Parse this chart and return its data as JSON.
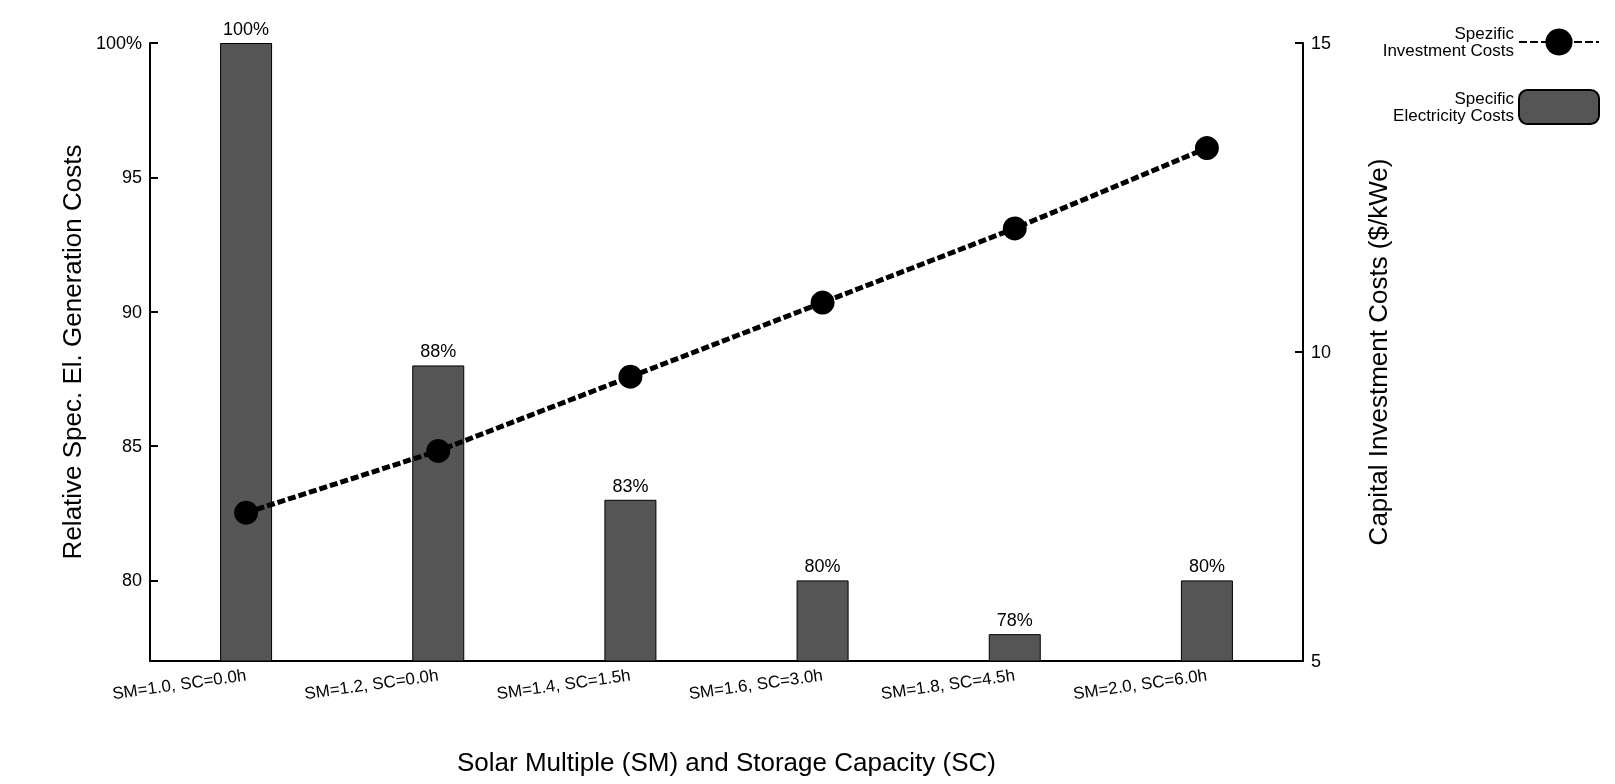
{
  "chart_data": {
    "type": "bar",
    "xlabel": "Solar Multiple (SM) and Storage Capacity (SC)",
    "ylabel": "Relative Spec. El. Generation Costs",
    "y2label": "Capital Investment Costs ($/kWe)",
    "categories": [
      "SM=1.0, SC=0.0h",
      "SM=1.2, SC=0.0h",
      "SM=1.4, SC=1.5h",
      "SM=1.6, SC=3.0h",
      "SM=1.8, SC=4.5h",
      "SM=2.0, SC=6.0h"
    ],
    "series": [
      {
        "name": "Spezific\nInvestment Costs",
        "type": "line",
        "axis": "y2",
        "color": "#000000",
        "marker": "circle",
        "line_style": "dashed",
        "values": [
          7.4,
          8.4,
          9.6,
          10.8,
          12.0,
          13.3
        ]
      },
      {
        "name": "Specific\nElectricity Costs",
        "type": "bar",
        "color": "#555555",
        "values": [
          100,
          88,
          83,
          80,
          78,
          80
        ],
        "value_labels": [
          "100%",
          "88%",
          "83%",
          "80%",
          "78%",
          "80%"
        ]
      }
    ],
    "ylim": [
      77,
      100
    ],
    "yticks": [
      80,
      85,
      90,
      95,
      {
        "value": 100,
        "label": "100%"
      }
    ],
    "y2lim": [
      5,
      15
    ],
    "y2ticks": [
      5,
      10,
      15
    ],
    "legend": "top right",
    "grid": false
  }
}
